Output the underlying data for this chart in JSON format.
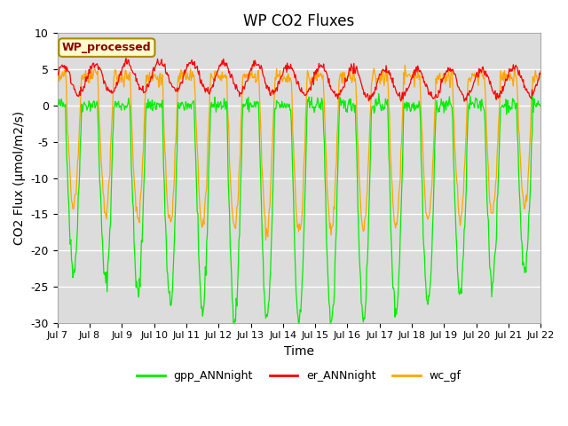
{
  "title": "WP CO2 Fluxes",
  "ylabel": "CO2 Flux (μmol/m2/s)",
  "xlabel": "Time",
  "ylim": [
    -30,
    10
  ],
  "yticks": [
    -30,
    -25,
    -20,
    -15,
    -10,
    -5,
    0,
    5,
    10
  ],
  "xtick_labels": [
    "Jul 7",
    "Jul 8",
    "Jul 9",
    "Jul 10",
    "Jul 11",
    "Jul 12",
    "Jul 13",
    "Jul 14",
    "Jul 15",
    "Jul 16",
    "Jul 17",
    "Jul 18",
    "Jul 19",
    "Jul 20",
    "Jul 21",
    "Jul 22"
  ],
  "annotation_text": "WP_processed",
  "annotation_color": "#8B0000",
  "annotation_bg": "#FFFFCC",
  "annotation_border": "#AA8800",
  "colors": {
    "gpp_ANNnight": "#00EE00",
    "er_ANNnight": "#FF0000",
    "wc_gf": "#FFA500"
  },
  "background_color": "#DCDCDC",
  "grid_color": "#FFFFFF",
  "n_days": 15,
  "points_per_day": 48,
  "figsize": [
    6.4,
    4.8
  ],
  "dpi": 100
}
